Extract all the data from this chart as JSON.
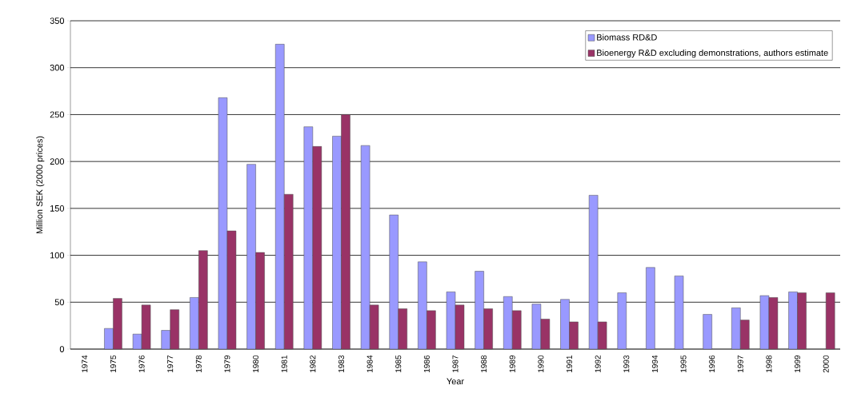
{
  "chart_data": {
    "type": "bar",
    "xlabel": "Year",
    "ylabel": "Million SEK (2000 prices)",
    "categories": [
      "1974",
      "1975",
      "1976",
      "1977",
      "1978",
      "1979",
      "1980",
      "1981",
      "1982",
      "1983",
      "1984",
      "1985",
      "1986",
      "1987",
      "1988",
      "1989",
      "1990",
      "1991",
      "1992",
      "1993",
      "1994",
      "1995",
      "1996",
      "1997",
      "1998",
      "1999",
      "2000"
    ],
    "series": [
      {
        "name": "Biomass RD&D",
        "color": "#9999ff",
        "values": [
          null,
          22,
          16,
          20,
          55,
          268,
          197,
          325,
          237,
          227,
          217,
          143,
          93,
          61,
          83,
          56,
          48,
          53,
          164,
          60,
          87,
          78,
          37,
          44,
          57,
          61,
          null
        ]
      },
      {
        "name": "Bioenergy R&D excluding demonstrations, authors estimate",
        "color": "#993366",
        "values": [
          null,
          54,
          47,
          42,
          105,
          126,
          103,
          165,
          216,
          250,
          47,
          43,
          41,
          47,
          43,
          41,
          32,
          29,
          29,
          null,
          null,
          null,
          null,
          31,
          55,
          60,
          60
        ]
      }
    ],
    "ylim": [
      0,
      350
    ],
    "yticks": [
      0,
      50,
      100,
      150,
      200,
      250,
      300,
      350
    ],
    "grid": "y",
    "legend": "top right"
  }
}
